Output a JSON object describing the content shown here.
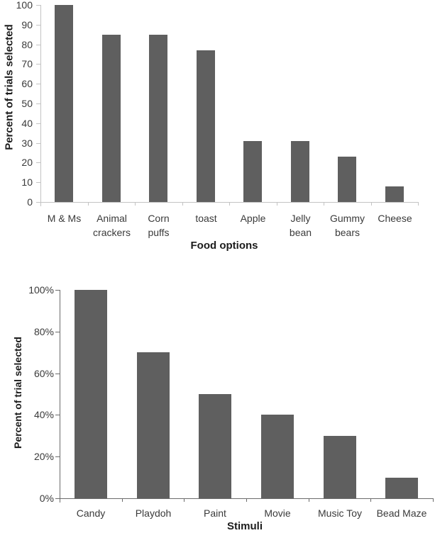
{
  "page": {
    "background": "#ffffff"
  },
  "chart_data": [
    {
      "type": "bar",
      "title": "",
      "xlabel": "Food options",
      "ylabel": "Percent of trials selected",
      "categories": [
        "M & Ms",
        "Animal crackers",
        "Corn puffs",
        "toast",
        "Apple",
        "Jelly bean",
        "Gummy bears",
        "Cheese"
      ],
      "x_tick_labels": [
        "M & Ms",
        "Animal\ncrackers",
        "Corn\npuffs",
        "toast",
        "Apple",
        "Jelly\nbean",
        "Gummy\nbears",
        "Cheese"
      ],
      "values": [
        100,
        85,
        85,
        77,
        31,
        31,
        23,
        8
      ],
      "ylim": [
        0,
        100
      ],
      "yticks": [
        {
          "value": 0,
          "label": "0"
        },
        {
          "value": 10,
          "label": "10"
        },
        {
          "value": 20,
          "label": "20"
        },
        {
          "value": 30,
          "label": "30"
        },
        {
          "value": 40,
          "label": "40"
        },
        {
          "value": 50,
          "label": "50"
        },
        {
          "value": 60,
          "label": "60"
        },
        {
          "value": 70,
          "label": "70"
        },
        {
          "value": 80,
          "label": "80"
        },
        {
          "value": 90,
          "label": "90"
        },
        {
          "value": 100,
          "label": "100"
        }
      ],
      "grid": false,
      "legend": null,
      "bar_color": "#5f5f5f",
      "axis_color": "#c3c3c3"
    },
    {
      "type": "bar",
      "title": "",
      "xlabel": "Stimuli",
      "ylabel": "Percent of trial selected",
      "categories": [
        "Candy",
        "Playdoh",
        "Paint",
        "Movie",
        "Music Toy",
        "Bead Maze"
      ],
      "x_tick_labels": [
        "Candy",
        "Playdoh",
        "Paint",
        "Movie",
        "Music Toy",
        "Bead Maze"
      ],
      "values": [
        100,
        70,
        50,
        40,
        30,
        10
      ],
      "ylim": [
        0,
        100
      ],
      "yticks": [
        {
          "value": 0,
          "label": "0%"
        },
        {
          "value": 20,
          "label": "20%"
        },
        {
          "value": 40,
          "label": "40%"
        },
        {
          "value": 60,
          "label": "60%"
        },
        {
          "value": 80,
          "label": "80%"
        },
        {
          "value": 100,
          "label": "100%"
        }
      ],
      "grid": false,
      "legend": null,
      "bar_color": "#5f5f5f",
      "axis_color": "#6b6b6b"
    }
  ]
}
